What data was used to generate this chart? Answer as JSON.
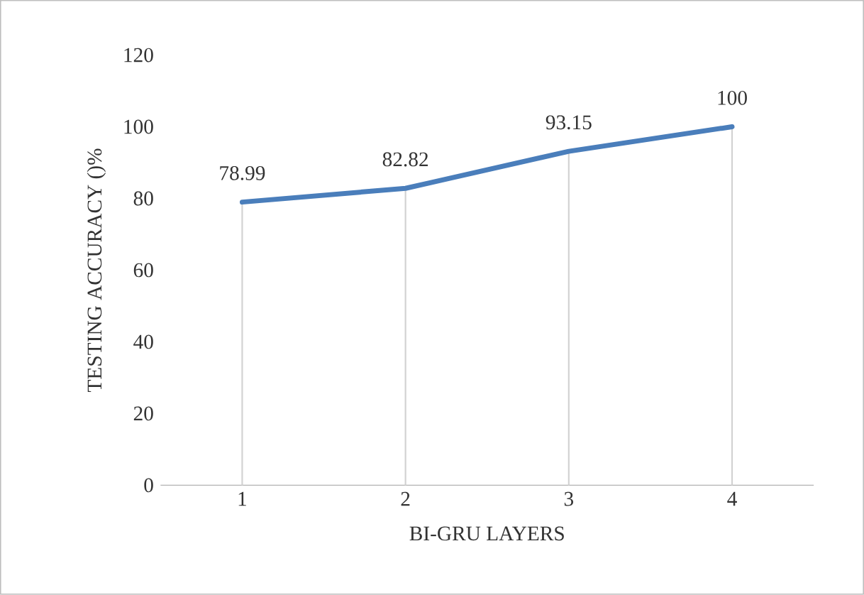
{
  "chart_data": {
    "type": "line",
    "xlabel": "BI-GRU LAYERS",
    "ylabel": "TESTING ACCURACY ()%",
    "categories": [
      "1",
      "2",
      "3",
      "4"
    ],
    "series": [
      {
        "color": "#4a7ebb",
        "values": [
          78.99,
          82.82,
          93.15,
          100
        ]
      }
    ],
    "ylim": [
      0,
      120
    ],
    "yticks": [
      0,
      20,
      40,
      60,
      80,
      100,
      120
    ],
    "data_labels": true,
    "marker": "none",
    "line_style": "solid"
  }
}
